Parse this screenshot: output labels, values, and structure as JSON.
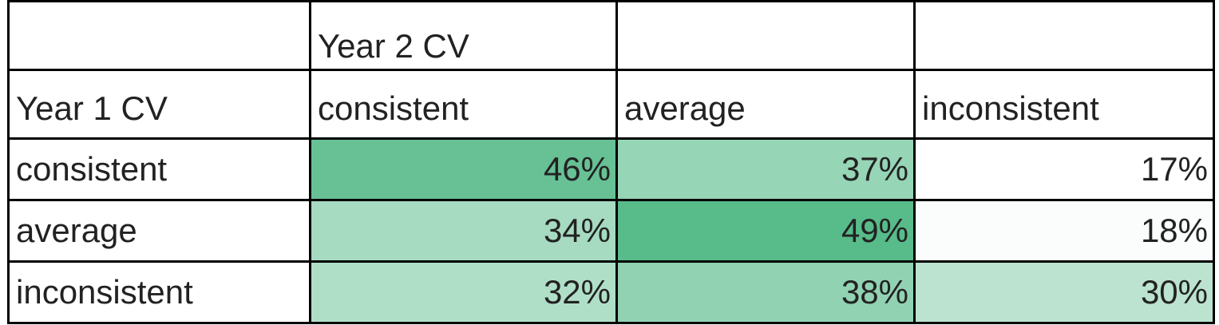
{
  "chart_data": {
    "type": "table",
    "corner_label": "Year 1 CV",
    "column_group_label": "Year 2 CV",
    "columns": [
      "consistent",
      "average",
      "inconsistent"
    ],
    "rows": [
      {
        "label": "consistent",
        "cells": [
          "46%",
          "37%",
          "17%"
        ],
        "values": [
          46,
          37,
          17
        ]
      },
      {
        "label": "average",
        "cells": [
          "34%",
          "49%",
          "18%"
        ],
        "values": [
          34,
          49,
          18
        ]
      },
      {
        "label": "inconsistent",
        "cells": [
          "32%",
          "38%",
          "30%"
        ],
        "values": [
          32,
          38,
          30
        ]
      }
    ],
    "color_scale": {
      "low": "#ffffff",
      "high": "#57bb8a",
      "min": 17,
      "max": 49
    }
  }
}
